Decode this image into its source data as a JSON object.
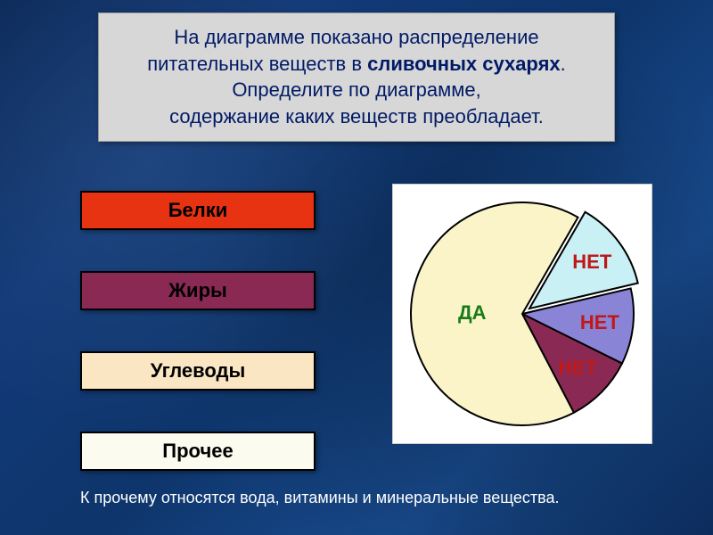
{
  "title": {
    "line1_a": "На диаграмме показано распределение",
    "line2_a": "питательных веществ в ",
    "line2_b": "сливочных сухарях",
    "line2_c": ".",
    "line3": "Определите по диаграмме,",
    "line4": "содержание каких веществ преобладает.",
    "color": "#001a66",
    "bg": "#d7d7d7",
    "fontsize": 22
  },
  "options": [
    {
      "label": "Белки",
      "bg": "#e73312",
      "fg": "#000000"
    },
    {
      "label": "Жиры",
      "bg": "#8a2a54",
      "fg": "#000000"
    },
    {
      "label": "Углеводы",
      "bg": "#fbe6c4",
      "fg": "#000000"
    },
    {
      "label": "Прочее",
      "bg": "#fcfbef",
      "fg": "#000000"
    }
  ],
  "footnote": "К прочему относятся вода, витамины и минеральные вещества.",
  "chart": {
    "type": "pie",
    "bg": "#ffffff",
    "stroke": "#000000",
    "stroke_width": 2,
    "pull_out_index": 0,
    "pull_out_dist": 10,
    "slices": [
      {
        "name": "Прочее",
        "value": 13,
        "color": "#c9f0f4",
        "label": "НЕТ",
        "label_color": "#c01818"
      },
      {
        "name": "Белки",
        "value": 11,
        "color": "#8a84d6",
        "label": "НЕТ",
        "label_color": "#c01818"
      },
      {
        "name": "Жиры",
        "value": 10,
        "color": "#8a2a54",
        "label": "НЕТ",
        "label_color": "#c01818"
      },
      {
        "name": "Углеводы",
        "value": 66,
        "color": "#fbf4c8",
        "label": "ДА",
        "label_color": "#1a7a1a"
      }
    ],
    "label_fontsize": 22,
    "start_angle_deg": -60
  }
}
